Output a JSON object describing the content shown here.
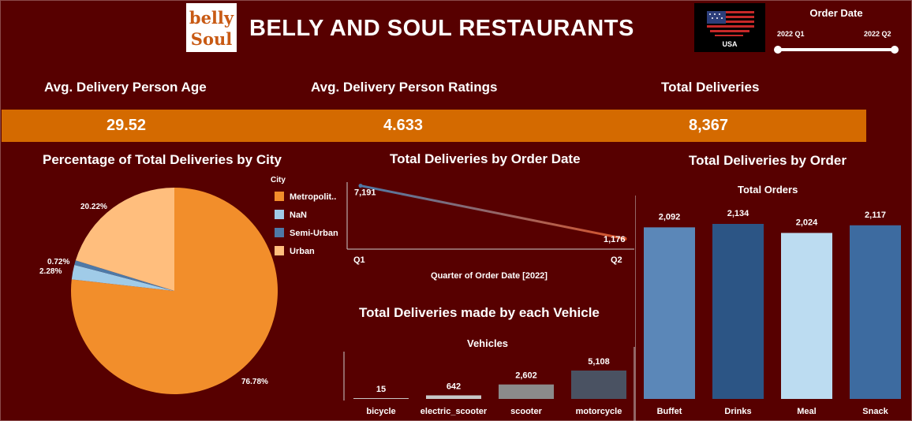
{
  "header": {
    "title": "BELLY AND SOUL RESTAURANTS",
    "logo_text_top": "belly",
    "logo_text_bottom": "Soul",
    "flag_text": "USA",
    "logo_icon": "belly-and-soul-logo",
    "flag_icon": "usa-flag-icon"
  },
  "filter": {
    "title": "Order Date",
    "start_label": "2022 Q1",
    "end_label": "2022 Q2",
    "start_fraction": 0,
    "end_fraction": 1
  },
  "kpis": [
    {
      "label": "Avg. Delivery Person Age",
      "value": "29.52"
    },
    {
      "label": "Avg. Delivery Person Ratings",
      "value": "4.633"
    },
    {
      "label": "Total Deliveries",
      "value": "8,367"
    }
  ],
  "colors": {
    "background": "#570000",
    "kpi_band": "#d46a00",
    "metropolitan": "#f28e2b",
    "nan": "#a0cbe8",
    "semi_urban": "#4e79a7",
    "urban": "#ffbe7d"
  },
  "chart_data": [
    {
      "type": "pie",
      "title": "Percentage of Total Deliveries by City",
      "legend_title": "City",
      "legend_placement": "right",
      "slices": [
        {
          "name": "Metropolit..",
          "value": 76.78,
          "label": "76.78%",
          "color": "#f28e2b"
        },
        {
          "name": "NaN",
          "value": 2.28,
          "label": "2.28%",
          "color": "#a0cbe8"
        },
        {
          "name": "Semi-Urban",
          "value": 0.72,
          "label": "0.72%",
          "color": "#4e79a7"
        },
        {
          "name": "Urban",
          "value": 20.22,
          "label": "20.22%",
          "color": "#ffbe7d"
        }
      ]
    },
    {
      "type": "line",
      "title": "Total Deliveries by Order Date",
      "xlabel": "Quarter of Order Date [2022]",
      "ylabel": "",
      "categories": [
        "Q1",
        "Q2"
      ],
      "values": [
        7191,
        1176
      ],
      "value_labels": [
        "7,191",
        "1,176"
      ],
      "ylim": [
        0,
        7600
      ],
      "grid": false
    },
    {
      "type": "bar",
      "title": "Total Deliveries made by each Vehicle",
      "subtitle": "Vehicles",
      "categories": [
        "bicycle",
        "electric_scooter",
        "scooter",
        "motorcycle"
      ],
      "values": [
        15,
        642,
        2602,
        5108
      ],
      "value_labels": [
        "15",
        "642",
        "2,602",
        "5,108"
      ],
      "ylim": [
        0,
        5108
      ],
      "colors": [
        "#c8c8c8",
        "#c8c8c8",
        "#8b8b8b",
        "#4a5262"
      ]
    },
    {
      "type": "bar",
      "title": "Total Deliveries by Order",
      "subtitle": "Total Orders",
      "categories": [
        "Buffet",
        "Drinks",
        "Meal",
        "Snack"
      ],
      "values": [
        2092,
        2134,
        2024,
        2117
      ],
      "value_labels": [
        "2,092",
        "2,134",
        "2,024",
        "2,117"
      ],
      "ylim": [
        0,
        2134
      ],
      "colors": [
        "#5b87b8",
        "#2c5585",
        "#bcdcf1",
        "#3d6ba0"
      ]
    }
  ]
}
